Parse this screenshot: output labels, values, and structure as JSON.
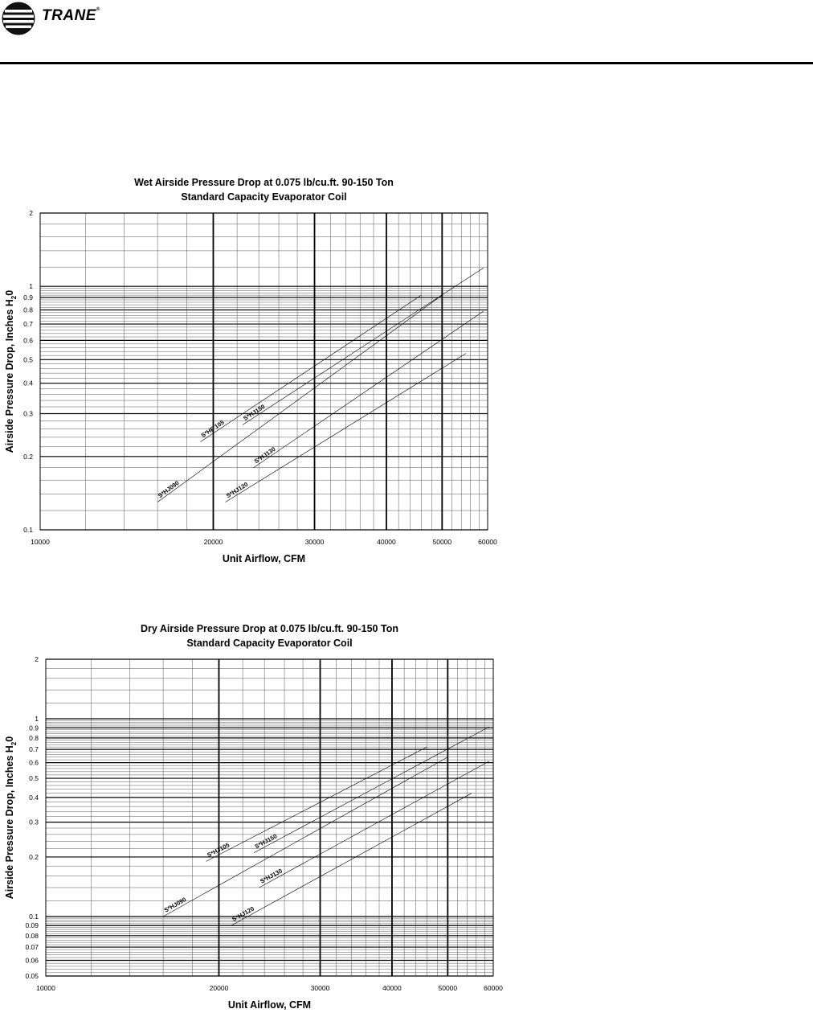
{
  "header": {
    "brand": "TRANE",
    "registered": "®"
  },
  "chart_data": [
    {
      "type": "line",
      "title": "Wet Airside Pressure Drop at 0.075 lb/cu.ft.  90-150 Ton",
      "subtitle": "Standard Capacity Evaporator Coil",
      "xlabel": "Unit Airflow, CFM",
      "ylabel": "Airside Pressure Drop, Inches H",
      "ylabel_sub": "2",
      "ylabel_tail": "0",
      "x_scale": "log",
      "y_scale": "log",
      "xlim": [
        10000,
        60000
      ],
      "ylim": [
        0.1,
        2
      ],
      "x_ticks": [
        10000,
        20000,
        30000,
        40000,
        50000,
        60000
      ],
      "x_tick_labels": [
        "10000",
        "20000",
        "30000",
        "40000",
        "50000",
        "60000"
      ],
      "y_ticks": [
        0.1,
        0.2,
        0.3,
        0.4,
        0.5,
        0.6,
        0.7,
        0.8,
        0.9,
        1,
        2
      ],
      "y_tick_labels": [
        "0.1",
        "0.2",
        "0.3",
        "0.4",
        "0.5",
        "0.6",
        "0.7",
        "0.8",
        "0.9",
        "1",
        "2"
      ],
      "grid": true,
      "series": [
        {
          "name": "S*HJ090",
          "x": [
            16000,
            50000
          ],
          "y": [
            0.13,
            0.92
          ]
        },
        {
          "name": "S*HF 105",
          "x": [
            19000,
            46000
          ],
          "y": [
            0.23,
            0.92
          ]
        },
        {
          "name": "S*HJ150",
          "x": [
            22500,
            59000
          ],
          "y": [
            0.27,
            1.19
          ]
        },
        {
          "name": "S*HJ130",
          "x": [
            23500,
            59000
          ],
          "y": [
            0.18,
            0.79
          ]
        },
        {
          "name": "S*HJ120",
          "x": [
            21000,
            55000
          ],
          "y": [
            0.13,
            0.53
          ]
        }
      ]
    },
    {
      "type": "line",
      "title": "Dry Airside Pressure Drop at 0.075 lb/cu.ft.  90-150 Ton",
      "subtitle": "Standard Capacity Evaporator Coil",
      "xlabel": "Unit Airflow, CFM",
      "ylabel": "Airside Pressure Drop, Inches H",
      "ylabel_sub": "2",
      "ylabel_tail": "0",
      "x_scale": "log",
      "y_scale": "log",
      "xlim": [
        10000,
        60000
      ],
      "ylim": [
        0.05,
        2
      ],
      "x_ticks": [
        10000,
        20000,
        30000,
        40000,
        50000,
        60000
      ],
      "x_tick_labels": [
        "10000",
        "20000",
        "30000",
        "40000",
        "50000",
        "60000"
      ],
      "y_ticks": [
        0.05,
        0.06,
        0.07,
        0.08,
        0.09,
        0.1,
        0.2,
        0.3,
        0.4,
        0.5,
        0.6,
        0.7,
        0.8,
        0.9,
        1,
        2
      ],
      "y_tick_labels": [
        "0.05",
        "0.06",
        "0.07",
        "0.08",
        "0.09",
        "0.1",
        "0.2",
        "0.3",
        "0.4",
        "0.5",
        "0.6",
        "0.7",
        "0.8",
        "0.9",
        "1",
        "2"
      ],
      "grid": true,
      "series": [
        {
          "name": "S*HJ090",
          "x": [
            16000,
            50000
          ],
          "y": [
            0.1,
            0.64
          ]
        },
        {
          "name": "S*HJ105",
          "x": [
            19000,
            46000
          ],
          "y": [
            0.19,
            0.72
          ]
        },
        {
          "name": "S*HJ150",
          "x": [
            23000,
            59000
          ],
          "y": [
            0.21,
            0.91
          ]
        },
        {
          "name": "S*HJ130",
          "x": [
            23500,
            59000
          ],
          "y": [
            0.14,
            0.61
          ]
        },
        {
          "name": "S*HJ120",
          "x": [
            21000,
            55000
          ],
          "y": [
            0.09,
            0.42
          ]
        }
      ]
    }
  ]
}
